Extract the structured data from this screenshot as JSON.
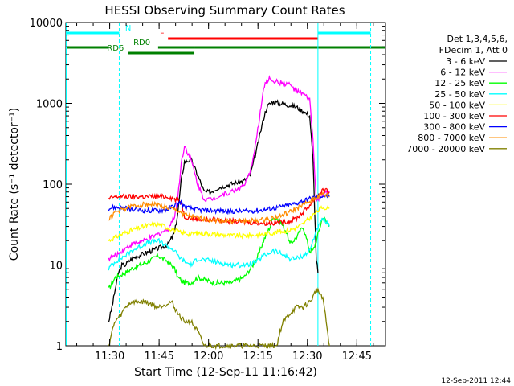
{
  "chart_data": {
    "type": "line",
    "title": "HESSI Observing Summary Count Rates",
    "xlabel": "Start Time (12-Sep-11 11:16:42)",
    "ylabel": "Count Rate (s⁻¹ detector⁻¹)",
    "footer": "12-Sep-2011 12:44",
    "yscale": "log",
    "ylim": [
      1,
      10000
    ],
    "xlim_minutes": [
      0,
      97
    ],
    "y_ticks": [
      {
        "v": 1,
        "label": "1"
      },
      {
        "v": 10,
        "label": "10"
      },
      {
        "v": 100,
        "label": "100"
      },
      {
        "v": 1000,
        "label": "1000"
      },
      {
        "v": 10000,
        "label": "10000"
      }
    ],
    "x_ticks": [
      {
        "m": 13.3,
        "label": "11:30"
      },
      {
        "m": 28.3,
        "label": "11:45"
      },
      {
        "m": 43.3,
        "label": "12:00"
      },
      {
        "m": 58.3,
        "label": "12:15"
      },
      {
        "m": 73.3,
        "label": "12:30"
      },
      {
        "m": 88.3,
        "label": "12:45"
      }
    ],
    "legend_title": [
      "Det 1,3,4,5,6,",
      "FDecim 1, Att 0"
    ],
    "legend_position": "right",
    "series": [
      {
        "name": "3 - 6 keV",
        "color": "#000000",
        "x": [
          13,
          14,
          15,
          16,
          17,
          18,
          20,
          24,
          28,
          31,
          33,
          34,
          35,
          36,
          38,
          40,
          42,
          44,
          46,
          50,
          54,
          56,
          58,
          60,
          61,
          62,
          63,
          65,
          68,
          70,
          72,
          74,
          75,
          76,
          76.5
        ],
        "y": [
          2,
          3,
          5,
          8,
          10,
          10,
          12,
          14,
          16,
          18,
          25,
          45,
          110,
          190,
          200,
          130,
          80,
          80,
          90,
          100,
          110,
          130,
          280,
          650,
          900,
          1000,
          1050,
          1000,
          950,
          900,
          800,
          700,
          200,
          12,
          8
        ]
      },
      {
        "name": "6 - 12 keV",
        "color": "#ff00ff",
        "x": [
          13,
          15,
          17,
          20,
          24,
          28,
          31,
          33,
          34,
          35,
          36,
          38,
          40,
          42,
          44,
          46,
          50,
          54,
          56,
          58,
          60,
          61,
          62,
          63,
          65,
          68,
          70,
          72,
          74,
          75,
          76,
          78,
          80
        ],
        "y": [
          12,
          13,
          15,
          18,
          20,
          24,
          28,
          40,
          70,
          180,
          300,
          200,
          100,
          65,
          65,
          70,
          80,
          95,
          140,
          400,
          1500,
          1900,
          2050,
          1900,
          1800,
          1700,
          1400,
          1300,
          1100,
          350,
          60,
          75,
          80
        ]
      },
      {
        "name": "12 - 25 keV",
        "color": "#00ff00",
        "x": [
          13,
          14,
          15,
          18,
          20,
          25,
          28,
          31,
          33,
          34,
          36,
          38,
          40,
          45,
          50,
          54,
          56,
          58,
          60,
          62,
          63,
          65,
          67,
          68,
          70,
          72,
          74,
          75,
          76,
          78,
          80
        ],
        "y": [
          5,
          6,
          7,
          8,
          9,
          11,
          13,
          11,
          9,
          7,
          6,
          6,
          7,
          6,
          6,
          7,
          9,
          12,
          20,
          30,
          40,
          35,
          25,
          18,
          22,
          30,
          15,
          15,
          20,
          40,
          30
        ]
      },
      {
        "name": "25 - 50 keV",
        "color": "#00ffff",
        "x": [
          13,
          14,
          15,
          18,
          20,
          25,
          28,
          31,
          33,
          34,
          36,
          38,
          40,
          45,
          50,
          55,
          58,
          60,
          63,
          65,
          68,
          70,
          72,
          74,
          75,
          76,
          78,
          80
        ],
        "y": [
          9,
          10,
          11,
          13,
          15,
          19,
          20,
          17,
          15,
          13,
          11,
          10,
          12,
          11,
          10,
          10,
          11,
          13,
          15,
          14,
          12,
          12,
          13,
          15,
          20,
          27,
          37,
          30
        ]
      },
      {
        "name": "50 - 100 keV",
        "color": "#ffff00",
        "x": [
          13,
          14,
          15,
          18,
          20,
          25,
          28,
          30,
          33,
          35,
          36,
          38,
          40,
          45,
          50,
          55,
          60,
          65,
          68,
          70,
          72,
          74,
          76,
          78,
          80
        ],
        "y": [
          20,
          21,
          22,
          25,
          27,
          31,
          32,
          30,
          27,
          25,
          25,
          24,
          25,
          24,
          23,
          23,
          24,
          26,
          27,
          29,
          32,
          38,
          45,
          52,
          50
        ]
      },
      {
        "name": "100 - 300 keV",
        "color": "#ff0000",
        "x": [
          13,
          14,
          15,
          18,
          20,
          25,
          28,
          31,
          33,
          35,
          36,
          38,
          40,
          45,
          50,
          55,
          60,
          63,
          65,
          68,
          70,
          72,
          74,
          76,
          78,
          80
        ],
        "y": [
          65,
          68,
          70,
          70,
          70,
          70,
          70,
          70,
          65,
          60,
          40,
          38,
          37,
          36,
          35,
          34,
          33,
          33,
          34,
          35,
          38,
          45,
          55,
          70,
          85,
          80
        ]
      },
      {
        "name": "300 - 800 keV",
        "color": "#0000ff",
        "x": [
          13,
          15,
          18,
          20,
          25,
          28,
          31,
          33,
          35,
          36,
          38,
          40,
          45,
          50,
          55,
          60,
          65,
          68,
          70,
          72,
          74,
          76,
          78,
          80
        ],
        "y": [
          50,
          52,
          50,
          48,
          47,
          47,
          49,
          55,
          60,
          52,
          50,
          48,
          47,
          46,
          46,
          48,
          52,
          55,
          58,
          62,
          66,
          70,
          72,
          70
        ]
      },
      {
        "name": "800 - 7000 keV",
        "color": "#ff8c00",
        "x": [
          13,
          14,
          15,
          18,
          20,
          22,
          25,
          28,
          30,
          33,
          35,
          36,
          38,
          40,
          45,
          50,
          55,
          60,
          65,
          68,
          70,
          72,
          74,
          76,
          78,
          80
        ],
        "y": [
          37,
          40,
          45,
          50,
          53,
          55,
          57,
          55,
          52,
          48,
          45,
          42,
          40,
          38,
          36,
          35,
          35,
          36,
          40,
          45,
          50,
          55,
          62,
          68,
          75,
          70
        ]
      },
      {
        "name": "7000 - 20000 keV",
        "color": "#808000",
        "x": [
          13,
          14,
          15,
          17,
          18,
          20,
          24,
          28,
          32,
          34,
          36,
          38,
          40,
          42,
          44,
          46,
          48,
          50,
          52,
          55,
          58,
          60,
          62,
          64,
          65,
          66,
          68,
          70,
          72,
          74,
          75,
          76,
          78,
          80
        ],
        "y": [
          1,
          1.5,
          2,
          2.5,
          3,
          3.5,
          3.5,
          3,
          3.5,
          2.5,
          2,
          2,
          1.5,
          1,
          1,
          1,
          1,
          1,
          1,
          1,
          1,
          1,
          1,
          1,
          1.5,
          2,
          2.5,
          3,
          3,
          3.5,
          4,
          5,
          4,
          1
        ]
      }
    ],
    "annotations": {
      "N": {
        "label": "N",
        "color": "#00ffff",
        "segments": [
          [
            0,
            16.2
          ],
          [
            76.5,
            92.5
          ]
        ]
      },
      "F": {
        "label": "F",
        "color": "#ff0000",
        "segments": [
          [
            31,
            76.5
          ]
        ]
      },
      "RD0": {
        "label": "RD0",
        "color": "#008000",
        "segments": [
          [
            0,
            13
          ],
          [
            28,
            39
          ],
          [
            39,
            68
          ],
          [
            68,
            97
          ]
        ]
      },
      "RD6": {
        "label": "RD6",
        "color": "#008000",
        "segments": [
          [
            19,
            39
          ]
        ]
      },
      "vlines": [
        {
          "m": 16.2,
          "color": "#00ffff",
          "dashed": true
        },
        {
          "m": 76.5,
          "color": "#00ffff",
          "dashed": false
        },
        {
          "m": 92.5,
          "color": "#00ffff",
          "dashed": true
        }
      ]
    }
  }
}
